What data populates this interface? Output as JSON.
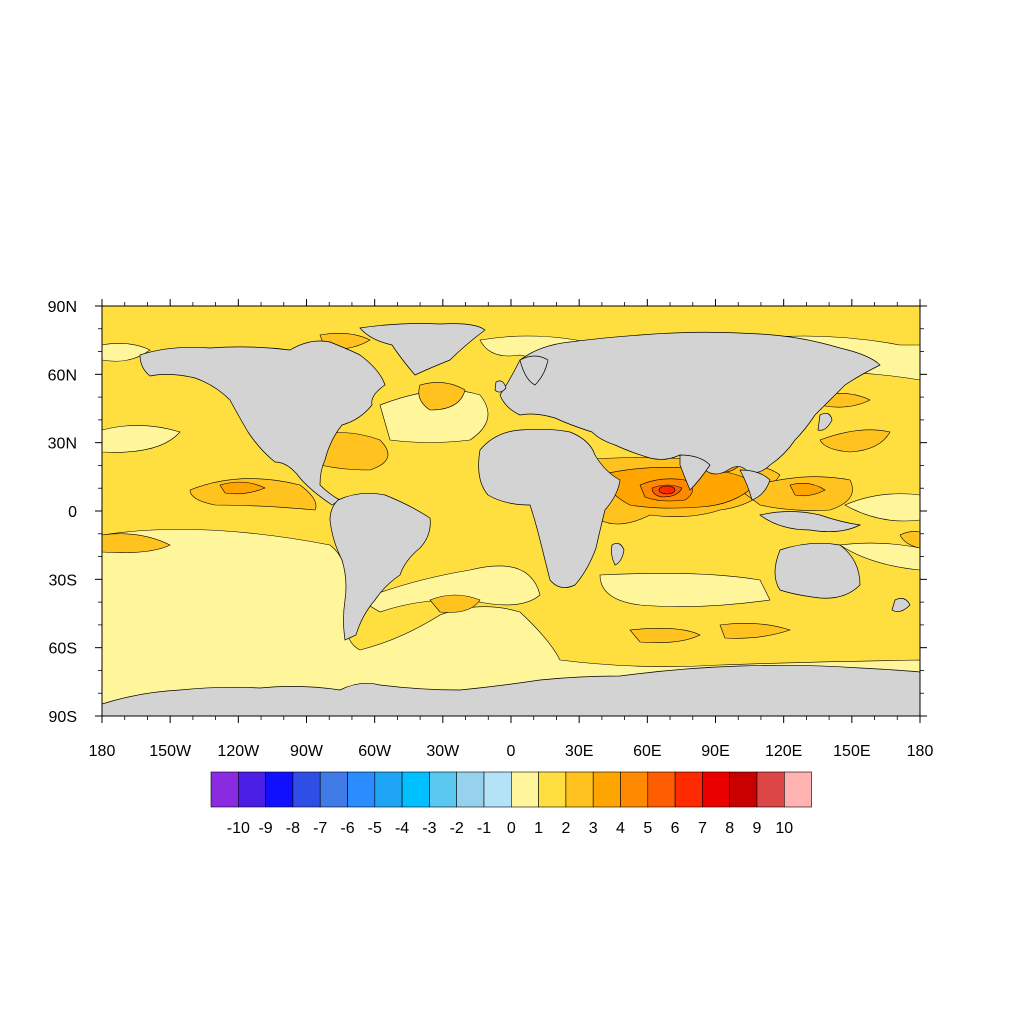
{
  "map": {
    "projection": "cylindrical-equidistant",
    "lon_range": [
      -180,
      180
    ],
    "lat_range": [
      -90,
      90
    ],
    "land_color": "#d3d3d3",
    "coastline_color": "#000000",
    "x_tick_labels": [
      "180",
      "150W",
      "120W",
      "90W",
      "60W",
      "30W",
      "0",
      "30E",
      "60E",
      "90E",
      "120E",
      "150E",
      "180"
    ],
    "x_tick_values": [
      -180,
      -150,
      -120,
      -90,
      -60,
      -30,
      0,
      30,
      60,
      90,
      120,
      150,
      180
    ],
    "y_tick_labels": [
      "90N",
      "60N",
      "30N",
      "0",
      "30S",
      "60S",
      "90S"
    ],
    "y_tick_values": [
      90,
      60,
      30,
      0,
      -30,
      -60,
      -90
    ]
  },
  "colorbar": {
    "orientation": "horizontal",
    "colors": [
      "#8a2be2",
      "#4b1ee6",
      "#1010ff",
      "#2e4ee6",
      "#3f7ae6",
      "#2a8cff",
      "#1ea5f5",
      "#00c0ff",
      "#5ac8f0",
      "#96d2ee",
      "#b4e2f6",
      "#fff59a",
      "#ffdf40",
      "#ffc21f",
      "#ffa500",
      "#ff8a00",
      "#ff5e00",
      "#ff2a00",
      "#ea0000",
      "#c80000",
      "#dc4646",
      "#ffb2b2"
    ],
    "labels": [
      "-10",
      "-9",
      "-8",
      "-7",
      "-6",
      "-5",
      "-4",
      "-3",
      "-2",
      "-1",
      "0",
      "1",
      "2",
      "3",
      "4",
      "5",
      "6",
      "7",
      "8",
      "9",
      "10"
    ]
  },
  "chart_data": {
    "type": "heatmap",
    "variable_scale": [
      -10,
      10
    ],
    "levels": [
      -10,
      -9,
      -8,
      -7,
      -6,
      -5,
      -4,
      -3,
      -2,
      -1,
      0,
      1,
      2,
      3,
      4,
      5,
      6,
      7,
      8,
      9,
      10
    ],
    "dominant_range": [
      0,
      3
    ],
    "maximum_region": {
      "lon": 68,
      "lat": 9,
      "approx_value": 7
    },
    "title": "",
    "xlabel": "",
    "ylabel": ""
  }
}
